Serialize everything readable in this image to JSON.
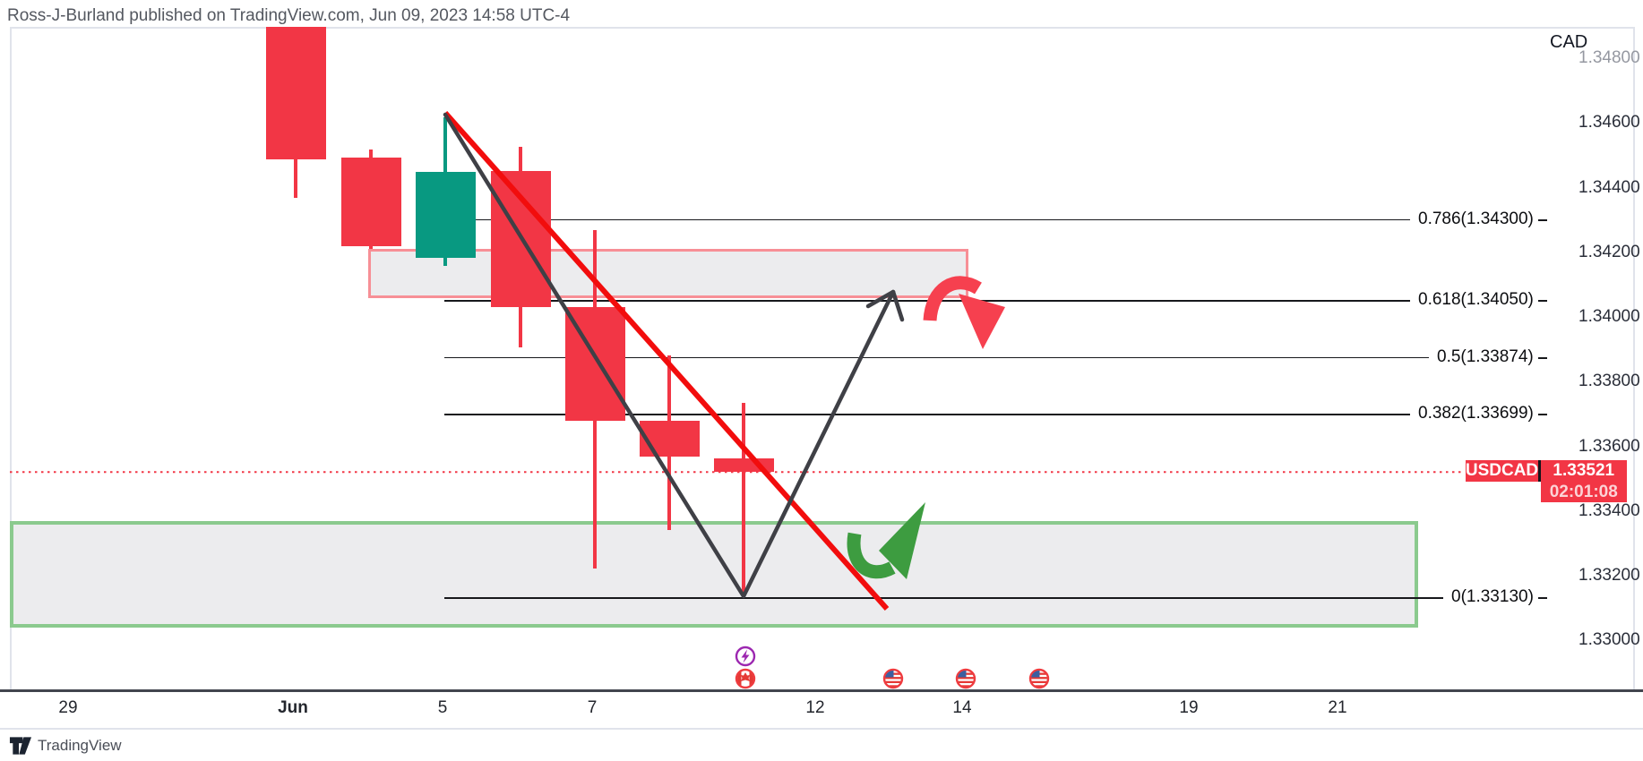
{
  "attribution": "Ross-J-Burland published on TradingView.com, Jun 09, 2023 14:58 UTC-4",
  "currency_label": "CAD",
  "logo_text": "TradingView",
  "price_badge": {
    "symbol": "USDCAD",
    "price": "1.33521",
    "countdown": "02:01:08"
  },
  "colors": {
    "candle_red": "#f23645",
    "candle_green": "#089981",
    "badge_red": "#f23645",
    "trendline_red": "#f20d0d",
    "zigzag_black": "#3f4046",
    "arrow_red": "#f6404f",
    "arrow_green": "#3d9c40",
    "zone_fill": "#ececee",
    "resistance_border": "#f78f96",
    "support_border": "#8bca8e",
    "fib_line": "#17181c",
    "dotted_price_line": "#f23645"
  },
  "chart_data": {
    "type": "candlestick",
    "title": "USDCAD daily chart with Fibonacci retracement",
    "x_axis": {
      "ticks": [
        "29",
        "Jun",
        "5",
        "7",
        "12",
        "14",
        "19",
        "21"
      ]
    },
    "y_axis": {
      "ticks": [
        "1.34800",
        "1.34600",
        "1.34400",
        "1.34200",
        "1.34000",
        "1.33800",
        "1.33600",
        "1.33400",
        "1.33200",
        "1.33000"
      ],
      "range": [
        1.32846,
        1.34897
      ]
    },
    "last_price": 1.33521,
    "countdown_to_bar_close": "02:01:08",
    "candles": [
      {
        "date": "Jun 1",
        "open": 1.34897,
        "high": 1.34897,
        "low": 1.34368,
        "close": 1.34487,
        "color": "red"
      },
      {
        "date": "Jun 2",
        "open": 1.34493,
        "high": 1.34518,
        "low": 1.3421,
        "close": 1.34219,
        "color": "red"
      },
      {
        "date": "Jun 5",
        "open": 1.34183,
        "high": 1.34617,
        "low": 1.34158,
        "close": 1.34448,
        "color": "green"
      },
      {
        "date": "Jun 6",
        "open": 1.34451,
        "high": 1.34526,
        "low": 1.33906,
        "close": 1.3403,
        "color": "red"
      },
      {
        "date": "Jun 7",
        "open": 1.3403,
        "high": 1.34268,
        "low": 1.33222,
        "close": 1.33679,
        "color": "red"
      },
      {
        "date": "Jun 8",
        "open": 1.33679,
        "high": 1.33881,
        "low": 1.33341,
        "close": 1.33568,
        "color": "red"
      },
      {
        "date": "Jun 9",
        "open": 1.33563,
        "high": 1.33734,
        "low": 1.33134,
        "close": 1.33521,
        "color": "red"
      }
    ],
    "fib_levels": [
      {
        "label": "0.786(1.34300)",
        "price": 1.343
      },
      {
        "label": "0.618(1.34050)",
        "price": 1.3405
      },
      {
        "label": "0.5(1.33874)",
        "price": 1.33874
      },
      {
        "label": "0.382(1.33699)",
        "price": 1.33699
      },
      {
        "label": "0(1.33130)",
        "price": 1.3313
      }
    ],
    "zones": [
      {
        "name": "resistance-box",
        "price_top": 1.3421,
        "price_bottom": 1.34058,
        "border": "pink"
      },
      {
        "name": "support-box",
        "price_top": 1.33369,
        "price_bottom": 1.3304,
        "border": "green"
      }
    ],
    "annotations": [
      {
        "name": "red-downtrend-line",
        "type": "trendline",
        "color": "red"
      },
      {
        "name": "black-projection-zigzag",
        "type": "zigzag-arrow",
        "color": "black",
        "shape": "down to fib 0 then up toward 0.618"
      },
      {
        "name": "red-curved-arrow",
        "type": "curved-arrow",
        "color": "red",
        "meaning": "rejection lower at 0.618 resistance"
      },
      {
        "name": "green-curved-arrow",
        "type": "curved-arrow",
        "color": "green",
        "meaning": "bounce higher from support"
      }
    ],
    "event_markers": [
      {
        "icon": "lightning",
        "color": "purple",
        "position": "Jun 9"
      },
      {
        "icon": "canada-flag",
        "color": "red",
        "position": "Jun 9"
      },
      {
        "icon": "us-flag",
        "color": "red",
        "position": "Jun 13"
      },
      {
        "icon": "us-flag",
        "color": "red",
        "position": "Jun 14"
      },
      {
        "icon": "us-flag",
        "color": "red",
        "position": "Jun 15"
      }
    ]
  }
}
